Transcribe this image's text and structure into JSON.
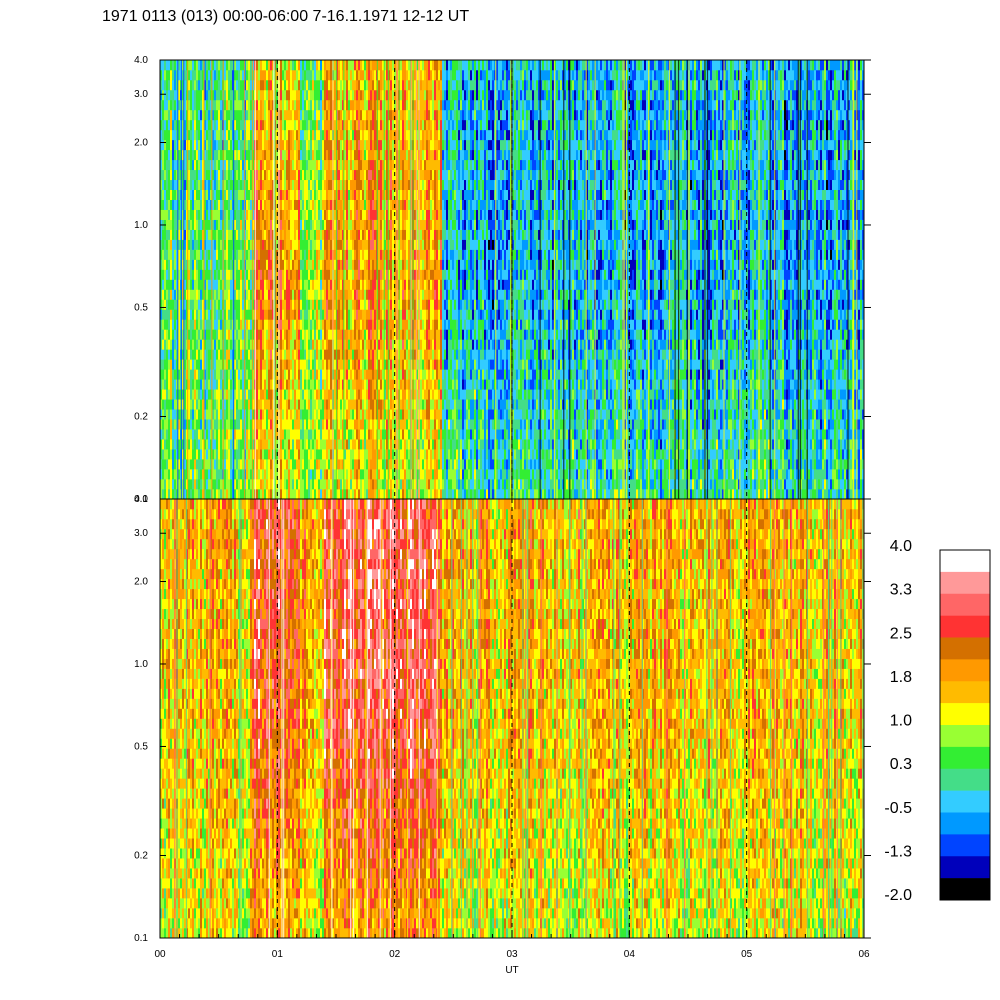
{
  "chart_data": {
    "type": "heatmap",
    "title": "1971 0113 (013) 00:00-06:00 7-16.1.1971  12-12 UT",
    "xlabel": "UT",
    "x_ticks": [
      "00",
      "01",
      "02",
      "03",
      "04",
      "05",
      "06"
    ],
    "xlim": [
      0,
      6
    ],
    "y_scale": "log",
    "ylim": [
      0.1,
      4.0
    ],
    "y_ticks": [
      {
        "value": 4.0,
        "label": "4.0"
      },
      {
        "value": 3.0,
        "label": "3.0"
      },
      {
        "value": 2.0,
        "label": "2.0"
      },
      {
        "value": 1.0,
        "label": "1.0"
      },
      {
        "value": 0.5,
        "label": "0.5"
      },
      {
        "value": 0.2,
        "label": "0.2"
      },
      {
        "value": 0.1,
        "label": "0.1"
      }
    ],
    "dashed_vertical_lines_at": [
      1,
      2,
      3,
      4,
      5
    ],
    "panels": [
      {
        "id": "upper",
        "dominant_level_by_hour": [
          {
            "hour_start": 0.0,
            "hour_end": 0.8,
            "low_freq": 0.5,
            "mid_freq": 0.4,
            "high_freq": 0.1
          },
          {
            "hour_start": 0.8,
            "hour_end": 1.2,
            "low_freq": 1.2,
            "mid_freq": 2.2,
            "high_freq": 1.5
          },
          {
            "hour_start": 1.2,
            "hour_end": 1.4,
            "low_freq": 0.6,
            "mid_freq": 0.8,
            "high_freq": 0.4
          },
          {
            "hour_start": 1.4,
            "hour_end": 2.4,
            "low_freq": 1.1,
            "mid_freq": 1.9,
            "high_freq": 1.6
          },
          {
            "hour_start": 2.4,
            "hour_end": 6.0,
            "low_freq": 0.1,
            "mid_freq": -0.5,
            "high_freq": -0.4
          }
        ]
      },
      {
        "id": "lower",
        "dominant_level_by_hour": [
          {
            "hour_start": 0.0,
            "hour_end": 0.8,
            "low_freq": 1.2,
            "mid_freq": 1.6,
            "high_freq": 1.7
          },
          {
            "hour_start": 0.8,
            "hour_end": 1.2,
            "low_freq": 2.0,
            "mid_freq": 2.7,
            "high_freq": 2.9
          },
          {
            "hour_start": 1.2,
            "hour_end": 1.4,
            "low_freq": 1.3,
            "mid_freq": 1.7,
            "high_freq": 1.9
          },
          {
            "hour_start": 1.4,
            "hour_end": 2.4,
            "low_freq": 1.9,
            "mid_freq": 2.8,
            "high_freq": 2.9
          },
          {
            "hour_start": 2.4,
            "hour_end": 6.0,
            "low_freq": 1.1,
            "mid_freq": 1.6,
            "high_freq": 1.7
          }
        ]
      }
    ],
    "colorbar": {
      "labels": [
        "4.0",
        "3.3",
        "2.5",
        "1.8",
        "1.0",
        "0.3",
        "-0.5",
        "-1.3",
        "-2.0"
      ],
      "range": [
        -2.0,
        4.0
      ],
      "colors_top_to_bottom": [
        "#ffffff",
        "#ff9999",
        "#ff6666",
        "#ff3333",
        "#d47000",
        "#ff9900",
        "#ffbb00",
        "#ffff00",
        "#99ff33",
        "#33ee33",
        "#44dd88",
        "#33ccff",
        "#0099ff",
        "#0044ff",
        "#0000bb",
        "#000000"
      ]
    }
  }
}
